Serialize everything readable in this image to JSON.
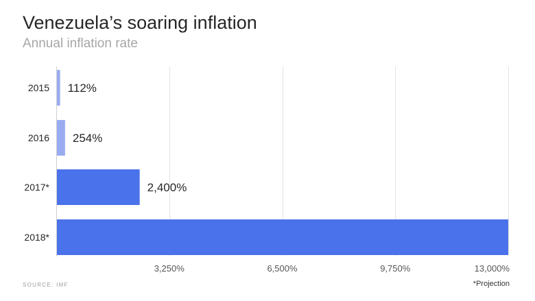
{
  "header": {
    "title": "Venezuela’s soaring inflation",
    "subtitle": "Annual inflation rate"
  },
  "footer": {
    "source": "SOURCE: IMF",
    "note": "*Projection"
  },
  "colors": {
    "actual": "#9aacf1",
    "projection": "#4a72ea",
    "grid": "#e3e3e3",
    "axis": "#cfcfcf"
  },
  "chart_data": {
    "type": "bar",
    "orientation": "horizontal",
    "title": "Venezuela’s soaring inflation",
    "subtitle": "Annual inflation rate",
    "categories": [
      "2015",
      "2016",
      "2017*",
      "2018*"
    ],
    "values": [
      112,
      254,
      2400,
      13000
    ],
    "data_labels": [
      "112%",
      "254%",
      "2,400%",
      ""
    ],
    "projected": [
      false,
      false,
      true,
      true
    ],
    "xlim": [
      0,
      13000
    ],
    "xticks": [
      3250,
      6500,
      9750,
      13000
    ],
    "xtick_labels": [
      "3,250%",
      "6,500%",
      "9,750%",
      "13,000%"
    ],
    "grid": true,
    "legend": "none"
  }
}
